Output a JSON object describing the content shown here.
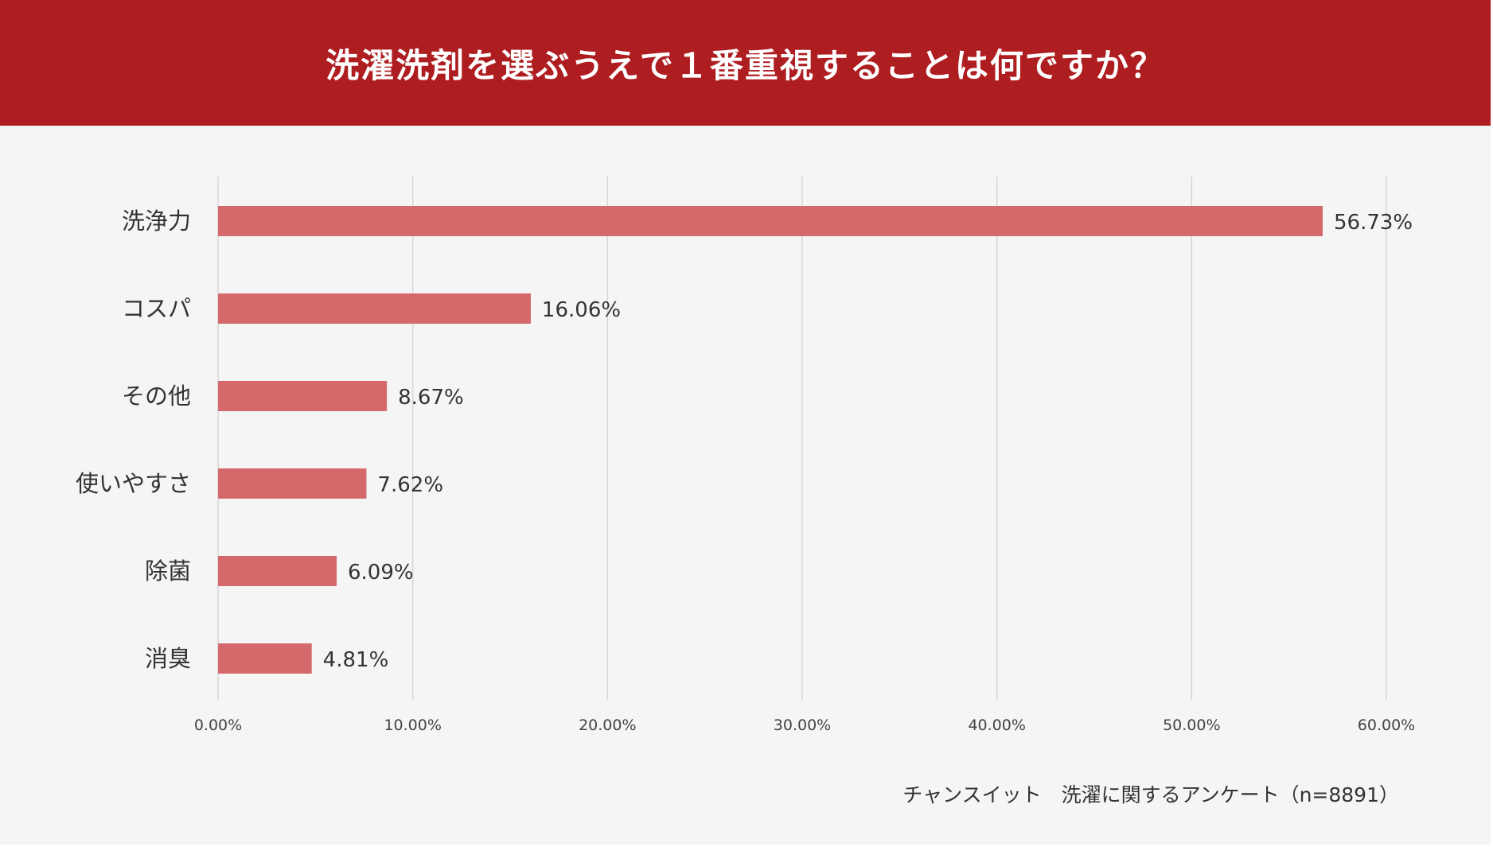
{
  "chart_data": {
    "type": "bar",
    "orientation": "horizontal",
    "title": "洗濯洗剤を選ぶうえで１番重視することは何ですか？",
    "categories": [
      "洗浄力",
      "コスパ",
      "その他",
      "使いやすさ",
      "除菌",
      "消臭"
    ],
    "values": [
      56.73,
      16.06,
      8.67,
      7.62,
      6.09,
      4.81
    ],
    "value_labels": [
      "56.73%",
      "16.06%",
      "8.67%",
      "7.62%",
      "6.09%",
      "4.81%"
    ],
    "xlim": [
      0,
      60
    ],
    "x_ticks": [
      0,
      10,
      20,
      30,
      40,
      50,
      60
    ],
    "x_tick_labels": [
      "0.00%",
      "10.00%",
      "20.00%",
      "30.00%",
      "40.00%",
      "50.00%",
      "60.00%"
    ],
    "xlabel": "",
    "ylabel": "",
    "grid": true,
    "legend": "none",
    "source_note": "チャンスイット　洗濯に関するアンケート（n=8891）",
    "colors": {
      "header": "#ae1d20",
      "bar": "#d4686a",
      "background": "#f5f5f5",
      "gridline": "#d6d6d6",
      "text": "#333333"
    }
  }
}
